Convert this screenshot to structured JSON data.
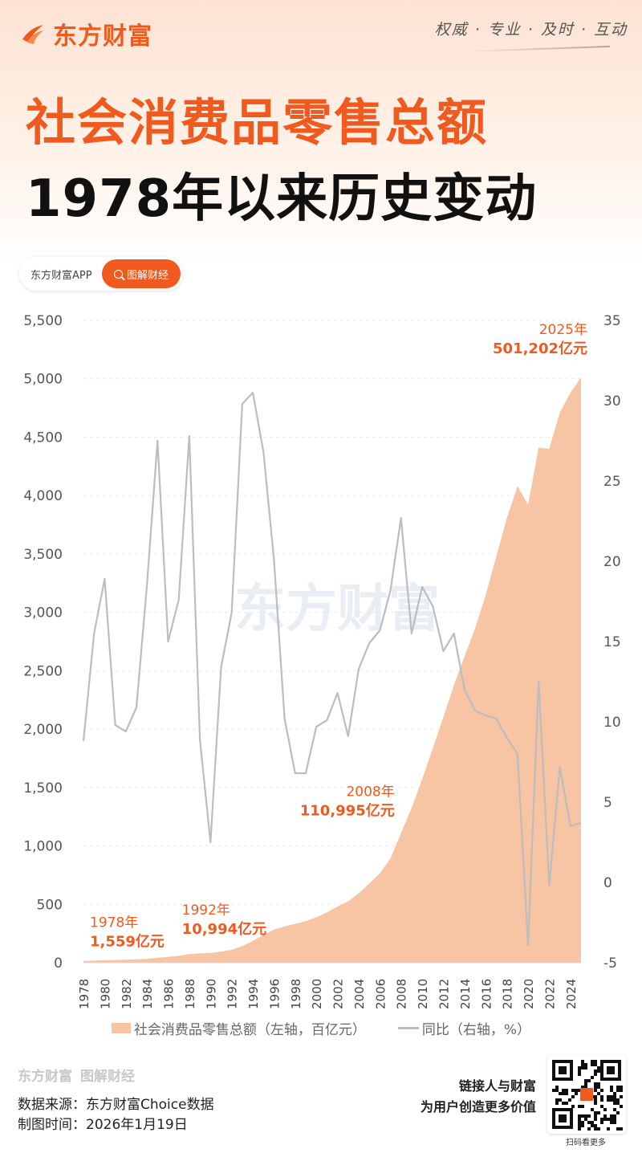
{
  "header": {
    "brand": "东方财富",
    "slogan": "权威 · 专业 · 及时 · 互动",
    "title_line1": "社会消费品零售总额",
    "title_line2": "1978年以来历史变动",
    "pill_left": "东方财富APP",
    "pill_right": "图解财经"
  },
  "colors": {
    "accent": "#f05a1e",
    "area": "#f7c4a4",
    "line": "#bdbdbd"
  },
  "chart_data": {
    "type": "area",
    "x": [
      1978,
      1979,
      1980,
      1981,
      1982,
      1983,
      1984,
      1985,
      1986,
      1987,
      1988,
      1989,
      1990,
      1991,
      1992,
      1993,
      1994,
      1995,
      1996,
      1997,
      1998,
      1999,
      2000,
      2001,
      2002,
      2003,
      2004,
      2005,
      2006,
      2007,
      2008,
      2009,
      2010,
      2011,
      2012,
      2013,
      2014,
      2015,
      2016,
      2017,
      2018,
      2019,
      2020,
      2021,
      2022,
      2023,
      2024,
      2025
    ],
    "x_tick_labels": [
      "1978",
      "1980",
      "1982",
      "1984",
      "1986",
      "1988",
      "1990",
      "1992",
      "1994",
      "1996",
      "1998",
      "2000",
      "2002",
      "2004",
      "2006",
      "2008",
      "2010",
      "2012",
      "2014",
      "2016",
      "2018",
      "2020",
      "2022",
      "2024"
    ],
    "series": [
      {
        "name": "社会消费品零售总额（左轴，百亿元）",
        "axis": "left",
        "type": "area",
        "values": [
          15.59,
          18.0,
          21.4,
          23.5,
          25.7,
          28.5,
          33.8,
          43.1,
          49.5,
          58.2,
          74.4,
          81.0,
          83.0,
          94.2,
          109.94,
          142.7,
          186.2,
          238.6,
          283.6,
          311.6,
          332.5,
          354.5,
          390.1,
          430.6,
          481.4,
          525.2,
          595.0,
          678.0,
          765.0,
          894.0,
          1109.95,
          1325.0,
          1572.0,
          1835.0,
          2104.0,
          2377.0,
          2625.0,
          2864.0,
          3151.0,
          3480.0,
          3810.0,
          4080.0,
          3920.0,
          4410.0,
          4400.0,
          4710.0,
          4880.0,
          5012.02
        ]
      },
      {
        "name": "同比（右轴，%）",
        "axis": "right",
        "type": "line",
        "values": [
          8.8,
          15.5,
          18.9,
          9.8,
          9.4,
          10.9,
          18.5,
          27.5,
          15.0,
          17.6,
          27.8,
          8.9,
          2.5,
          13.4,
          16.8,
          29.8,
          30.5,
          26.8,
          20.1,
          10.2,
          6.8,
          6.8,
          9.7,
          10.1,
          11.8,
          9.1,
          13.3,
          14.9,
          15.7,
          18.2,
          22.7,
          15.5,
          18.4,
          17.2,
          14.4,
          15.5,
          12.0,
          10.7,
          10.4,
          10.2,
          9.0,
          8.0,
          -3.9,
          12.5,
          -0.2,
          7.2,
          3.5,
          3.7
        ]
      }
    ],
    "left_axis": {
      "ylim": [
        0,
        5500
      ],
      "ticks": [
        "0",
        "500",
        "1,000",
        "1,500",
        "2,000",
        "2,500",
        "3,000",
        "3,500",
        "4,000",
        "4,500",
        "5,000",
        "5,500"
      ],
      "tick_values": [
        0,
        500,
        1000,
        1500,
        2000,
        2500,
        3000,
        3500,
        4000,
        4500,
        5000,
        5500
      ]
    },
    "right_axis": {
      "ylim": [
        -5,
        35
      ],
      "ticks": [
        "-5",
        "0",
        "5",
        "10",
        "15",
        "20",
        "25",
        "30",
        "35"
      ],
      "tick_values": [
        -5,
        0,
        5,
        10,
        15,
        20,
        25,
        30,
        35
      ]
    },
    "annotations": [
      {
        "year": "1978年",
        "value": "1,559亿元",
        "x": 1978,
        "y": 15.59
      },
      {
        "year": "1992年",
        "value": "10,994亿元",
        "x": 1992,
        "y": 109.94
      },
      {
        "year": "2008年",
        "value": "110,995亿元",
        "x": 2008,
        "y": 1109.95
      },
      {
        "year": "2025年",
        "value": "501,202亿元",
        "x": 2025,
        "y": 5012.02
      }
    ],
    "watermark": "东方财富",
    "grid": true
  },
  "legend": {
    "area_label": "社会消费品零售总额（左轴，百亿元）",
    "line_label": "同比（右轴，%）"
  },
  "footer": {
    "brand": "东方财富",
    "sub": "图解财经",
    "source": "数据来源：东方财富Choice数据",
    "date": "制图时间：2026年1月19日",
    "tag1": "链接人与财富",
    "tag2": "为用户创造更多价值",
    "qr_caption": "扫码看更多"
  }
}
